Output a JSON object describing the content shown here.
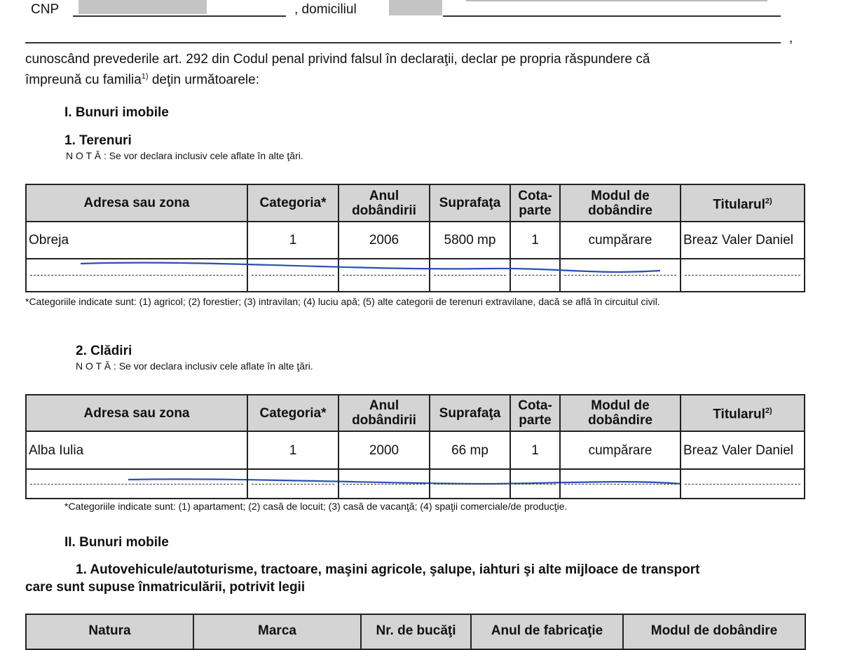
{
  "header": {
    "cnp_label": "CNP",
    "domiciliu_label": ", domiciliul",
    "trailing_comma": ","
  },
  "declaration": {
    "line1": "cunoscând prevederile art. 292 din Codul penal privind falsul în declaraţii, declar pe propria răspundere că",
    "line2_a": "împreună cu familia",
    "line2_sup": "1)",
    "line2_b": " deţin următoarele:"
  },
  "section1": {
    "title": "I. Bunuri imobile",
    "terenuri": {
      "title": "1. Terenuri",
      "note": "N O T Ă :  Se vor declara inclusiv cele aflate în alte ţări.",
      "headers": [
        "Adresa sau zona",
        "Categoria*",
        "Anul dobândirii",
        "Suprafaţa",
        "Cota-parte",
        "Modul de dobândire",
        "Titularul"
      ],
      "titular_sup": "2)",
      "rows": [
        [
          "Obreja",
          "1",
          "2006",
          "5800 mp",
          "1",
          "cumpărare",
          "Breaz Valer Daniel"
        ]
      ],
      "footnote": "*Categoriile indicate sunt: (1) agricol; (2) forestier; (3) intravilan; (4) luciu apă; (5) alte categorii de terenuri extravilane, dacă se află în circuitul civil."
    },
    "cladiri": {
      "title": "2. Clădiri",
      "note": "N O T Ă :  Se vor declara inclusiv cele aflate în alte ţări.",
      "headers": [
        "Adresa sau zona",
        "Categoria*",
        "Anul dobândirii",
        "Suprafaţa",
        "Cota-parte",
        "Modul de dobândire",
        "Titularul"
      ],
      "titular_sup": "2)",
      "rows": [
        [
          "Alba Iulia",
          "1",
          "2000",
          "66 mp",
          "1",
          "cumpărare",
          "Breaz Valer Daniel"
        ]
      ],
      "footnote": "*Categoriile indicate sunt: (1) apartament; (2) casă de locuit; (3) casă de vacanţă; (4) spaţii comerciale/de producţie."
    }
  },
  "section2": {
    "title": "II. Bunuri mobile",
    "auto": {
      "title_line1": "1. Autovehicule/autoturisme, tractoare, maşini agricole, şalupe, iahturi şi alte mijloace de transport",
      "title_line2": "care sunt supuse înmatriculării, potrivit legii",
      "headers": [
        "Natura",
        "Marca",
        "Nr. de bucăţi",
        "Anul de fabricaţie",
        "Modul de dobândire"
      ]
    }
  },
  "colors": {
    "pen": "#2a4fb0",
    "header_bg": "#d4d4d4",
    "redaction": "#c4c4c4"
  }
}
